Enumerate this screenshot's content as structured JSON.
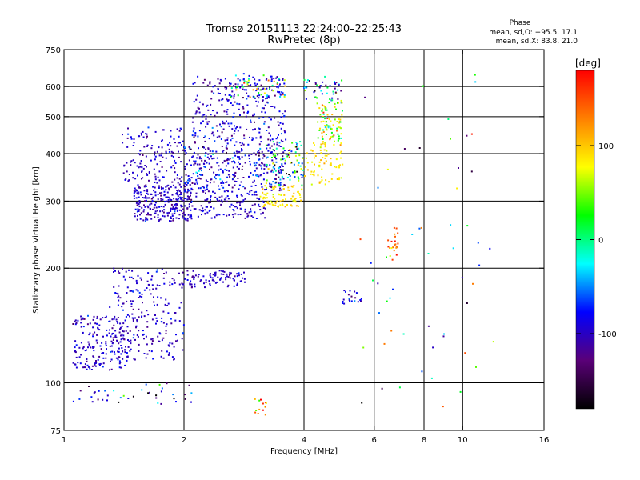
{
  "chart_data": {
    "type": "scatter",
    "title": "Tromsø 20151113 22:24:00–22:25:43",
    "subtitle": "RwPretec (8p)",
    "xlabel": "Frequency [MHz]",
    "ylabel": "Stationary phase Virtual Height [km]",
    "x_scale": "log",
    "y_scale": "log",
    "xlim": [
      1,
      16
    ],
    "ylim": [
      75,
      750
    ],
    "x_ticks": [
      1,
      2,
      4,
      6,
      8,
      10,
      16
    ],
    "x_gridlines": [
      2,
      4,
      6,
      8,
      10
    ],
    "y_ticks": [
      75,
      100,
      200,
      300,
      400,
      500,
      600,
      750
    ],
    "y_gridlines": [
      100,
      200,
      300,
      400,
      500,
      600
    ],
    "grid": true,
    "phase_stats": {
      "title": "Phase",
      "line_o": "mean, sd,O: −95.5, 17.1",
      "line_x": "mean, sd,X:  83.8, 21.0"
    },
    "colorbar": {
      "label": "[deg]",
      "range": [
        -180,
        180
      ],
      "ticks": [
        100,
        0,
        -100
      ],
      "colors": [
        "#000000",
        "#5a0078",
        "#0000ff",
        "#00ffff",
        "#00ff00",
        "#ffff00",
        "#ff8000",
        "#ff0000"
      ]
    },
    "clusters": [
      {
        "x": [
          1.5,
          2.1
        ],
        "y": [
          265,
          330
        ],
        "n": 260,
        "phase_mean": -100,
        "phase_sd": 14
      },
      {
        "x": [
          1.4,
          2.0
        ],
        "y": [
          330,
          470
        ],
        "n": 150,
        "phase_mean": -100,
        "phase_sd": 14
      },
      {
        "x": [
          2.0,
          3.2
        ],
        "y": [
          270,
          320
        ],
        "n": 140,
        "phase_mean": -98,
        "phase_sd": 14
      },
      {
        "x": [
          2.0,
          3.6
        ],
        "y": [
          320,
          420
        ],
        "n": 320,
        "phase_mean": -92,
        "phase_sd": 26
      },
      {
        "x": [
          2.1,
          3.6
        ],
        "y": [
          420,
          640
        ],
        "n": 300,
        "phase_mean": -95,
        "phase_sd": 20
      },
      {
        "x": [
          2.6,
          3.6
        ],
        "y": [
          560,
          650
        ],
        "n": 50,
        "phase_mean": 40,
        "phase_sd": 70
      },
      {
        "x": [
          3.1,
          4.0
        ],
        "y": [
          290,
          330
        ],
        "n": 80,
        "phase_mean": 88,
        "phase_sd": 12
      },
      {
        "x": [
          3.2,
          4.0
        ],
        "y": [
          330,
          430
        ],
        "n": 100,
        "phase_mean": -40,
        "phase_sd": 80
      },
      {
        "x": [
          4.0,
          5.0
        ],
        "y": [
          330,
          430
        ],
        "n": 80,
        "phase_mean": 88,
        "phase_sd": 12
      },
      {
        "x": [
          4.3,
          5.0
        ],
        "y": [
          430,
          560
        ],
        "n": 90,
        "phase_mean": 60,
        "phase_sd": 55
      },
      {
        "x": [
          4.0,
          5.0
        ],
        "y": [
          550,
          640
        ],
        "n": 45,
        "phase_mean": -60,
        "phase_sd": 60
      },
      {
        "x": [
          1.05,
          1.45
        ],
        "y": [
          108,
          150
        ],
        "n": 170,
        "phase_mean": -100,
        "phase_sd": 14
      },
      {
        "x": [
          1.3,
          2.0
        ],
        "y": [
          115,
          200
        ],
        "n": 240,
        "phase_mean": -100,
        "phase_sd": 14
      },
      {
        "x": [
          2.0,
          2.85
        ],
        "y": [
          178,
          198
        ],
        "n": 90,
        "phase_mean": -100,
        "phase_sd": 12
      },
      {
        "x": [
          1.05,
          2.1
        ],
        "y": [
          88,
          100
        ],
        "n": 40,
        "phase_mean": -90,
        "phase_sd": 50
      },
      {
        "x": [
          3.0,
          3.25
        ],
        "y": [
          82,
          92
        ],
        "n": 14,
        "phase_mean": 110,
        "phase_sd": 40
      },
      {
        "x": [
          6.5,
          6.9
        ],
        "y": [
          210,
          260
        ],
        "n": 22,
        "phase_mean": 140,
        "phase_sd": 25
      },
      {
        "x": [
          5.0,
          5.7
        ],
        "y": [
          160,
          175
        ],
        "n": 22,
        "phase_mean": -85,
        "phase_sd": 25
      },
      {
        "x": [
          5.5,
          12.0
        ],
        "y": [
          85,
          650
        ],
        "n": 55,
        "phase_mean": -40,
        "phase_sd": 95
      }
    ]
  }
}
